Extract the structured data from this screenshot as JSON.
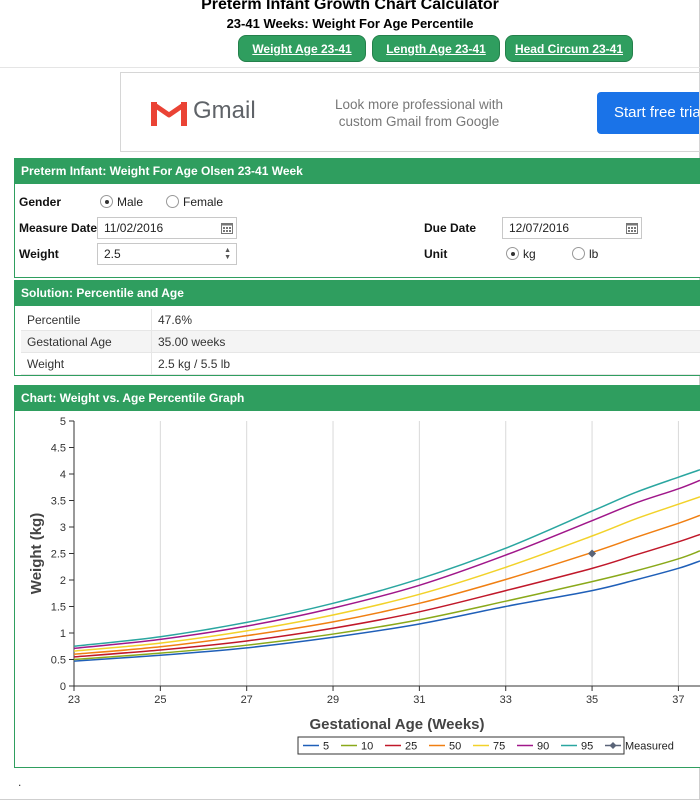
{
  "header": {
    "title": "Preterm Infant Growth Chart Calculator",
    "subtitle": "23-41 Weeks: Weight For Age Percentile",
    "nav": [
      {
        "label": "Weight Age 23-41"
      },
      {
        "label": "Length Age 23-41"
      },
      {
        "label": "Head Circum 23-41"
      }
    ]
  },
  "ad": {
    "brand": "Gmail",
    "text_line1": "Look more professional with",
    "text_line2": "custom Gmail from Google",
    "cta": "Start free trial"
  },
  "calculator": {
    "title": "Preterm Infant: Weight For Age Olsen 23-41 Week",
    "gender_label": "Gender",
    "gender_male": "Male",
    "gender_female": "Female",
    "gender_selected": "Male",
    "measure_date_label": "Measure Date",
    "measure_date_value": "11/02/2016",
    "due_date_label": "Due Date",
    "due_date_value": "12/07/2016",
    "weight_label": "Weight",
    "weight_value": "2.5",
    "unit_label": "Unit",
    "unit_kg": "kg",
    "unit_lb": "lb",
    "unit_selected": "kg"
  },
  "solution": {
    "title": "Solution: Percentile and Age",
    "rows": [
      {
        "key": "Percentile",
        "value": "47.6%"
      },
      {
        "key": "Gestational Age",
        "value": "35.00 weeks"
      },
      {
        "key": "Weight",
        "value": "2.5 kg / 5.5 lb"
      }
    ]
  },
  "chart_panel": {
    "title": "Chart: Weight vs. Age Percentile Graph"
  },
  "colors": {
    "accent": "#2f9e5f",
    "cta": "#1a73e8"
  },
  "footer": {
    "dot": "."
  },
  "chart_data": {
    "type": "line",
    "xlabel": "Gestational Age (Weeks)",
    "ylabel": "Weight (kg)",
    "xlim": [
      23,
      37.5
    ],
    "ylim": [
      0,
      5
    ],
    "xticks": [
      23,
      25,
      27,
      29,
      31,
      33,
      35,
      37
    ],
    "yticks": [
      0,
      0.5,
      1,
      1.5,
      2,
      2.5,
      3,
      3.5,
      4,
      4.5,
      5
    ],
    "grid": "vertical",
    "legend_position": "bottom",
    "x": [
      23,
      25,
      27,
      29,
      31,
      33,
      35,
      36,
      37,
      37.5
    ],
    "series": [
      {
        "name": "5",
        "color": "#1f5fb8",
        "values": [
          0.47,
          0.58,
          0.72,
          0.92,
          1.17,
          1.5,
          1.8,
          2.0,
          2.22,
          2.36
        ]
      },
      {
        "name": "10",
        "color": "#8aa91a",
        "values": [
          0.5,
          0.62,
          0.77,
          0.98,
          1.25,
          1.6,
          1.97,
          2.17,
          2.4,
          2.55
        ]
      },
      {
        "name": "25",
        "color": "#c0182a",
        "values": [
          0.55,
          0.68,
          0.85,
          1.09,
          1.4,
          1.8,
          2.22,
          2.47,
          2.72,
          2.86
        ]
      },
      {
        "name": "50",
        "color": "#f07f12",
        "values": [
          0.6,
          0.74,
          0.95,
          1.21,
          1.56,
          2.01,
          2.52,
          2.8,
          3.07,
          3.22
        ]
      },
      {
        "name": "75",
        "color": "#f2d22a",
        "values": [
          0.66,
          0.81,
          1.04,
          1.34,
          1.73,
          2.24,
          2.83,
          3.15,
          3.43,
          3.57
        ]
      },
      {
        "name": "90",
        "color": "#a0178a",
        "values": [
          0.71,
          0.88,
          1.13,
          1.47,
          1.9,
          2.47,
          3.12,
          3.45,
          3.72,
          3.88
        ]
      },
      {
        "name": "95",
        "color": "#2aa6a0",
        "values": [
          0.75,
          0.93,
          1.2,
          1.56,
          2.02,
          2.6,
          3.3,
          3.65,
          3.94,
          4.08
        ]
      }
    ],
    "measured": {
      "name": "Measured",
      "x": 35,
      "y": 2.5,
      "color": "#5a6478"
    }
  }
}
